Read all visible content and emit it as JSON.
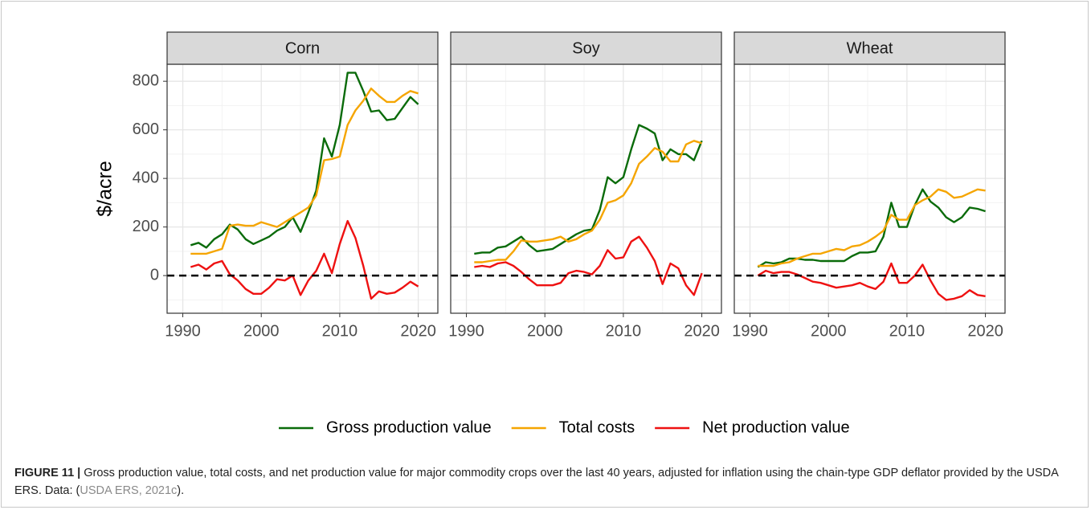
{
  "chart_data": {
    "type": "line",
    "ylabel": "$/acre",
    "xlim": [
      1988,
      2022.5
    ],
    "xticks": [
      1990,
      2000,
      2010,
      2020
    ],
    "ylim": [
      -155,
      870
    ],
    "yticks": [
      0,
      200,
      400,
      600,
      800
    ],
    "grid": true,
    "hline": 0,
    "legend": "bottom",
    "x": [
      1991,
      1992,
      1993,
      1994,
      1995,
      1996,
      1997,
      1998,
      1999,
      2000,
      2001,
      2002,
      2003,
      2004,
      2005,
      2006,
      2007,
      2008,
      2009,
      2010,
      2011,
      2012,
      2013,
      2014,
      2015,
      2016,
      2017,
      2018,
      2019,
      2020
    ],
    "series": [
      {
        "name": "Gross production value",
        "color": "#0a6b0a"
      },
      {
        "name": "Total costs",
        "color": "#f5a500"
      },
      {
        "name": "Net production value",
        "color": "#ee1111"
      }
    ],
    "facets": [
      {
        "title": "Corn",
        "values": [
          [
            125,
            135,
            115,
            150,
            170,
            210,
            190,
            150,
            130,
            145,
            160,
            185,
            200,
            240,
            180,
            260,
            350,
            565,
            490,
            620,
            835,
            835,
            760,
            675,
            680,
            640,
            645,
            690,
            735,
            705
          ],
          [
            90,
            90,
            90,
            100,
            110,
            205,
            210,
            205,
            205,
            220,
            210,
            200,
            220,
            240,
            260,
            280,
            330,
            475,
            480,
            490,
            620,
            680,
            720,
            770,
            740,
            715,
            715,
            740,
            760,
            750
          ],
          [
            35,
            45,
            25,
            50,
            60,
            5,
            -20,
            -55,
            -75,
            -75,
            -50,
            -15,
            -20,
            0,
            -80,
            -20,
            20,
            90,
            10,
            130,
            225,
            155,
            40,
            -95,
            -65,
            -75,
            -70,
            -50,
            -25,
            -45
          ]
        ]
      },
      {
        "title": "Soy",
        "values": [
          [
            90,
            95,
            95,
            115,
            120,
            140,
            160,
            125,
            100,
            105,
            110,
            130,
            150,
            170,
            185,
            190,
            270,
            405,
            380,
            405,
            520,
            620,
            605,
            585,
            475,
            520,
            500,
            500,
            475,
            555
          ],
          [
            55,
            55,
            60,
            65,
            65,
            100,
            145,
            140,
            140,
            145,
            150,
            160,
            140,
            150,
            170,
            185,
            230,
            300,
            310,
            330,
            380,
            460,
            490,
            525,
            510,
            470,
            470,
            540,
            555,
            545
          ],
          [
            35,
            40,
            35,
            50,
            55,
            40,
            15,
            -15,
            -40,
            -40,
            -40,
            -30,
            10,
            20,
            15,
            5,
            40,
            105,
            70,
            75,
            140,
            160,
            115,
            60,
            -35,
            50,
            30,
            -40,
            -80,
            10
          ]
        ]
      },
      {
        "title": "Wheat",
        "values": [
          [
            35,
            55,
            50,
            55,
            70,
            70,
            65,
            65,
            60,
            60,
            60,
            60,
            80,
            95,
            95,
            100,
            160,
            300,
            200,
            200,
            290,
            355,
            305,
            280,
            240,
            220,
            240,
            280,
            275,
            265
          ],
          [
            40,
            40,
            40,
            50,
            55,
            70,
            80,
            90,
            90,
            100,
            110,
            105,
            120,
            125,
            140,
            160,
            185,
            250,
            230,
            230,
            290,
            310,
            325,
            355,
            345,
            320,
            325,
            340,
            355,
            350
          ],
          [
            0,
            20,
            10,
            15,
            15,
            5,
            -10,
            -25,
            -30,
            -40,
            -50,
            -45,
            -40,
            -30,
            -45,
            -55,
            -25,
            50,
            -30,
            -30,
            0,
            45,
            -20,
            -75,
            -100,
            -95,
            -85,
            -60,
            -80,
            -85
          ]
        ]
      }
    ]
  },
  "caption": {
    "label": "FIGURE 11 |",
    "text": " Gross production value, total costs, and net production value for major commodity crops over the last 40 years, adjusted for inflation using the chain-type GDP deflator provided by the USDA ERS. Data: (",
    "link": "USDA ERS, 2021c",
    "end": ")."
  }
}
